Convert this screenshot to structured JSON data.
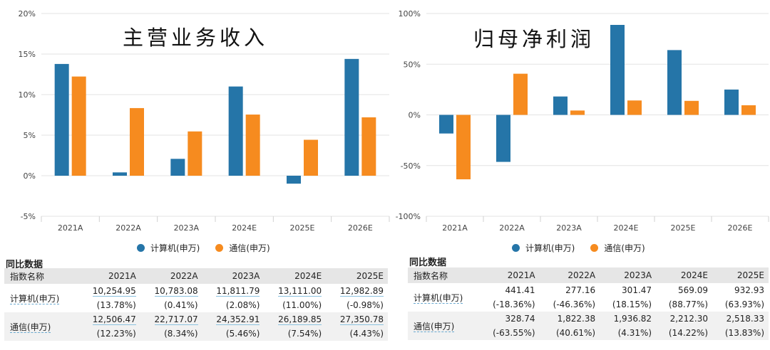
{
  "chart_data": [
    {
      "type": "bar",
      "title": "主营业务收入",
      "categories": [
        "2021A",
        "2022A",
        "2023A",
        "2024E",
        "2025E",
        "2026E"
      ],
      "series": [
        {
          "name": "计算机(申万)",
          "color": "#2575a8",
          "values": [
            13.78,
            0.41,
            2.08,
            11.0,
            -0.98,
            14.4
          ]
        },
        {
          "name": "通信(申万)",
          "color": "#f68b1f",
          "values": [
            12.23,
            8.34,
            5.46,
            7.54,
            4.43,
            7.2
          ]
        }
      ],
      "ylim": [
        -5,
        20
      ],
      "yticks": [
        -5,
        0,
        5,
        10,
        15,
        20
      ],
      "ytick_labels": [
        "-5%",
        "0%",
        "5%",
        "10%",
        "15%",
        "20%"
      ],
      "grid": "horizontal",
      "legend": "bottom"
    },
    {
      "type": "bar",
      "title": "归母净利润",
      "categories": [
        "2021A",
        "2022A",
        "2023A",
        "2024E",
        "2025E",
        "2026E"
      ],
      "series": [
        {
          "name": "计算机(申万)",
          "color": "#2575a8",
          "values": [
            -18.36,
            -46.36,
            18.15,
            88.77,
            63.93,
            25
          ]
        },
        {
          "name": "通信(申万)",
          "color": "#f68b1f",
          "values": [
            -63.55,
            40.61,
            4.31,
            14.22,
            13.83,
            9.5
          ]
        }
      ],
      "ylim": [
        -100,
        100
      ],
      "yticks": [
        -100,
        -50,
        0,
        50,
        100
      ],
      "ytick_labels": [
        "-100%",
        "-50%",
        "0%",
        "50%",
        "100%"
      ],
      "grid": "horizontal",
      "legend": "bottom"
    }
  ],
  "left": {
    "legend": {
      "s1": "计算机(申万)",
      "s2": "通信(申万)"
    },
    "table": {
      "title": "同比数据",
      "header": [
        "指数名称",
        "2021A",
        "2022A",
        "2023A",
        "2024E",
        "2025E"
      ],
      "rows": [
        {
          "name": "计算机(申万)",
          "values": [
            "10,254.95",
            "10,783.08",
            "11,811.79",
            "13,111.00",
            "12,982.89"
          ],
          "pct": [
            "(13.78%)",
            "(0.41%)",
            "(2.08%)",
            "(11.00%)",
            "(-0.98%)"
          ]
        },
        {
          "name": "通信(申万)",
          "values": [
            "12,506.47",
            "22,717.07",
            "24,352.91",
            "26,189.85",
            "27,350.78"
          ],
          "pct": [
            "(12.23%)",
            "(8.34%)",
            "(5.46%)",
            "(7.54%)",
            "(4.43%)"
          ]
        }
      ]
    }
  },
  "right": {
    "legend": {
      "s1": "计算机(申万)",
      "s2": "通信(申万)"
    },
    "table": {
      "title": "同比数据",
      "header": [
        "指数名称",
        "2021A",
        "2022A",
        "2023A",
        "2024E",
        "2025E"
      ],
      "rows": [
        {
          "name": "计算机(申万)",
          "values": [
            "441.41",
            "277.16",
            "301.47",
            "569.09",
            "932.93"
          ],
          "pct": [
            "(-18.36%)",
            "(-46.36%)",
            "(18.15%)",
            "(88.77%)",
            "(63.93%)"
          ]
        },
        {
          "name": "通信(申万)",
          "values": [
            "328.74",
            "1,822.38",
            "1,936.82",
            "2,212.30",
            "2,518.33"
          ],
          "pct": [
            "(-63.55%)",
            "(40.61%)",
            "(4.31%)",
            "(14.22%)",
            "(13.83%)"
          ]
        }
      ]
    }
  }
}
